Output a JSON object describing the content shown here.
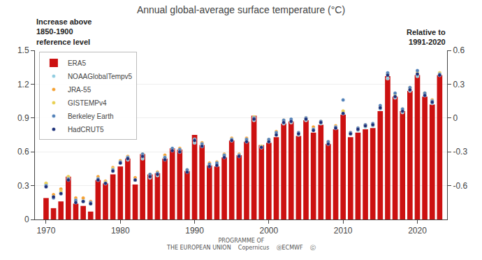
{
  "chart_data": {
    "type": "bar",
    "title": "Annual global-average surface temperature (°C)",
    "y_label": "Increase above\n1850-1900\nreference level",
    "y2_label": "Relative to\n1991-2020",
    "annotations": [
      "PROGRAMME OF\nTHE EUROPEAN UNION    Copernicus    ⓔECMWF    ⓒ"
    ],
    "x": [
      1970,
      1971,
      1972,
      1973,
      1974,
      1975,
      1976,
      1977,
      1978,
      1979,
      1980,
      1981,
      1982,
      1983,
      1984,
      1985,
      1986,
      1987,
      1988,
      1989,
      1990,
      1991,
      1992,
      1993,
      1994,
      1995,
      1996,
      1997,
      1998,
      1999,
      2000,
      2001,
      2002,
      2003,
      2004,
      2005,
      2006,
      2007,
      2008,
      2009,
      2010,
      2011,
      2012,
      2013,
      2014,
      2015,
      2016,
      2017,
      2018,
      2019,
      2020,
      2021,
      2022,
      2023
    ],
    "series": [
      {
        "name": "ERA5",
        "type": "bar",
        "color": "#cc1111",
        "values": [
          0.19,
          0.1,
          0.16,
          0.38,
          0.14,
          0.12,
          0.07,
          0.35,
          0.32,
          0.4,
          0.47,
          0.54,
          0.31,
          0.58,
          0.4,
          0.41,
          0.54,
          0.63,
          0.62,
          0.43,
          0.75,
          0.66,
          0.48,
          0.47,
          0.55,
          0.7,
          0.57,
          0.69,
          0.92,
          0.66,
          0.68,
          0.73,
          0.85,
          0.87,
          0.74,
          0.88,
          0.77,
          0.84,
          0.67,
          0.8,
          0.93,
          0.73,
          0.77,
          0.8,
          0.81,
          0.96,
          1.27,
          1.09,
          0.96,
          1.14,
          1.28,
          1.09,
          1.02,
          1.28
        ]
      },
      {
        "name": "NOAAGlobalTempv5",
        "type": "scatter",
        "marker": "circle",
        "color": "#90cce0",
        "values": [
          0.31,
          0.21,
          0.24,
          0.36,
          0.16,
          0.17,
          0.14,
          0.35,
          0.34,
          0.43,
          0.5,
          0.53,
          0.35,
          0.54,
          0.37,
          0.39,
          0.54,
          0.62,
          0.6,
          0.43,
          0.68,
          0.65,
          0.48,
          0.49,
          0.56,
          0.7,
          0.57,
          0.69,
          0.88,
          0.64,
          0.69,
          0.75,
          0.85,
          0.86,
          0.75,
          0.88,
          0.79,
          0.85,
          0.67,
          0.81,
          0.94,
          0.76,
          0.79,
          0.82,
          0.83,
          0.98,
          1.25,
          1.08,
          0.95,
          1.14,
          1.27,
          1.1,
          1.03,
          1.28
        ]
      },
      {
        "name": "JRA-55",
        "type": "scatter",
        "marker": "circle",
        "color": "#f4a030",
        "values": [
          0.32,
          0.22,
          0.27,
          0.38,
          0.19,
          0.19,
          0.16,
          0.38,
          0.34,
          0.46,
          0.52,
          0.56,
          0.37,
          0.58,
          0.4,
          0.42,
          0.57,
          0.62,
          0.63,
          0.44,
          0.7,
          0.68,
          0.5,
          0.51,
          0.58,
          0.72,
          0.58,
          0.72,
          0.9,
          0.65,
          0.71,
          0.78,
          0.88,
          0.87,
          0.77,
          0.9,
          0.82,
          0.87,
          0.69,
          0.83,
          0.96,
          0.77,
          0.81,
          0.84,
          0.84,
          1.0,
          1.29,
          1.1,
          0.98,
          1.17,
          1.31,
          1.12,
          1.06,
          1.3
        ]
      },
      {
        "name": "GISTEMPv4",
        "type": "scatter",
        "marker": "circle",
        "color": "#e8d050",
        "values": [
          0.32,
          0.2,
          0.25,
          0.38,
          0.17,
          0.16,
          0.14,
          0.36,
          0.33,
          0.45,
          0.51,
          0.55,
          0.35,
          0.56,
          0.38,
          0.4,
          0.55,
          0.62,
          0.61,
          0.43,
          0.71,
          0.66,
          0.48,
          0.49,
          0.57,
          0.71,
          0.57,
          0.7,
          0.91,
          0.65,
          0.7,
          0.76,
          0.87,
          0.87,
          0.76,
          0.89,
          0.8,
          0.86,
          0.68,
          0.82,
          0.96,
          0.76,
          0.8,
          0.83,
          0.84,
          1.0,
          1.29,
          1.11,
          0.97,
          1.16,
          1.3,
          1.12,
          1.05,
          1.3
        ]
      },
      {
        "name": "Berkeley Earth",
        "type": "scatter",
        "marker": "circle",
        "color": "#5080b8",
        "values": [
          0.3,
          0.19,
          0.23,
          0.36,
          0.17,
          0.16,
          0.15,
          0.36,
          0.32,
          0.44,
          0.51,
          0.55,
          0.35,
          0.58,
          0.4,
          0.41,
          0.55,
          0.63,
          0.62,
          0.44,
          0.71,
          0.67,
          0.49,
          0.5,
          0.57,
          0.71,
          0.57,
          0.71,
          0.9,
          0.64,
          0.71,
          0.77,
          0.88,
          0.89,
          0.77,
          0.9,
          0.8,
          0.87,
          0.69,
          0.82,
          1.06,
          0.77,
          0.81,
          0.84,
          0.85,
          1.01,
          1.3,
          1.12,
          0.98,
          1.17,
          1.32,
          1.12,
          1.05,
          1.29
        ]
      },
      {
        "name": "HadCRUT5",
        "type": "scatter",
        "marker": "circle",
        "color": "#1a2e78",
        "values": [
          0.29,
          0.2,
          0.23,
          0.35,
          0.15,
          0.16,
          0.14,
          0.35,
          0.32,
          0.43,
          0.5,
          0.54,
          0.35,
          0.56,
          0.38,
          0.4,
          0.53,
          0.61,
          0.6,
          0.42,
          0.7,
          0.65,
          0.47,
          0.48,
          0.55,
          0.7,
          0.56,
          0.69,
          0.89,
          0.64,
          0.69,
          0.75,
          0.86,
          0.87,
          0.76,
          0.89,
          0.79,
          0.86,
          0.67,
          0.81,
          0.94,
          0.76,
          0.8,
          0.83,
          0.84,
          0.99,
          1.28,
          1.09,
          0.96,
          1.15,
          1.29,
          1.1,
          1.04,
          1.28
        ]
      }
    ],
    "xlim": [
      1968.5,
      2024.0
    ],
    "xticks": [
      1970,
      1980,
      1990,
      2000,
      2010,
      2020
    ],
    "ylim": [
      0.0,
      1.5
    ],
    "yticks": [
      0,
      0.3,
      0.6,
      0.9,
      1.2,
      1.5
    ],
    "y2lim": [
      -0.9,
      0.6
    ],
    "y2ticks": [
      -0.6,
      -0.3,
      0,
      0.3,
      0.6
    ],
    "grid": true,
    "legend": "upper left"
  }
}
